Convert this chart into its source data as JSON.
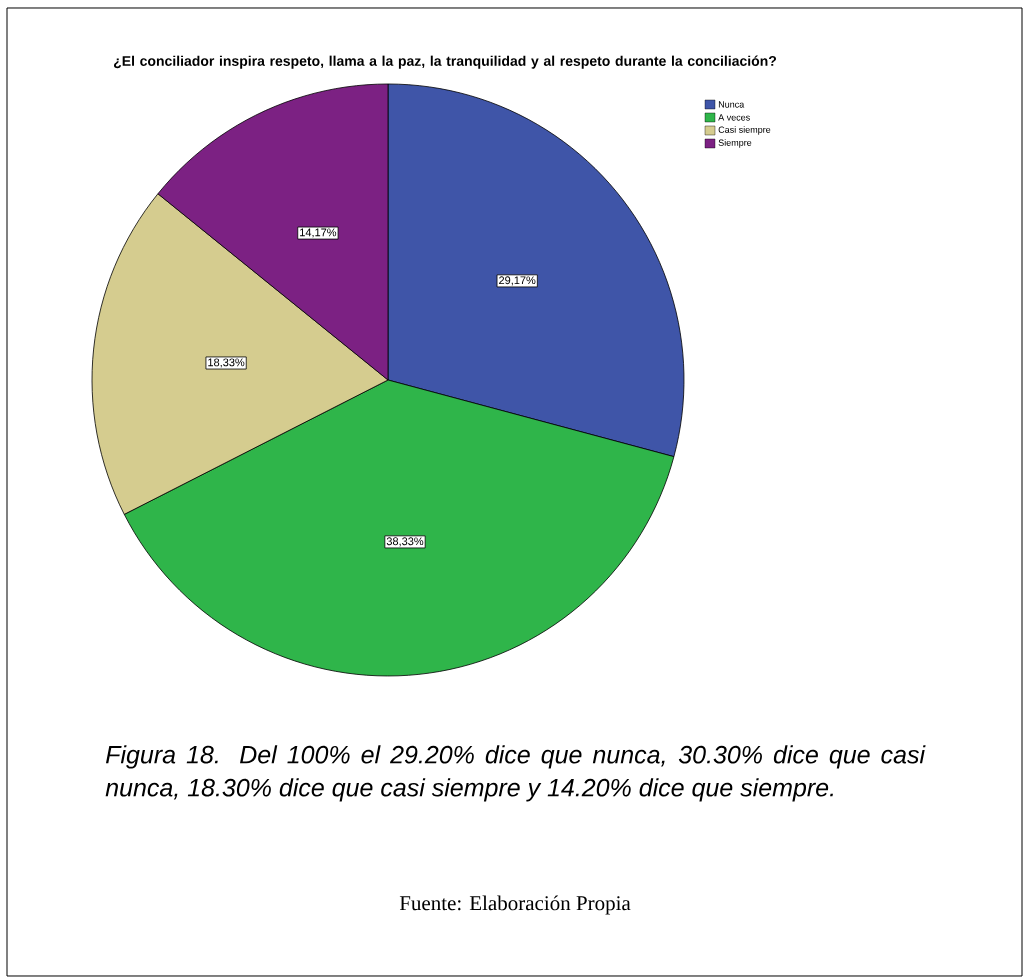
{
  "chart_data": {
    "type": "pie",
    "title": "¿El conciliador inspira respeto, llama a la paz, la tranquilidad y al respeto durante la conciliación?",
    "categories": [
      "Nunca",
      "A veces",
      "Casi siempre",
      "Siempre"
    ],
    "values": [
      29.17,
      38.33,
      18.33,
      14.17
    ],
    "value_labels": [
      "29,17%",
      "38,33%",
      "18,33%",
      "14,17%"
    ],
    "colors": [
      "#3f55a8",
      "#2fb54a",
      "#d5cc8f",
      "#7c2183"
    ],
    "legend": "top right",
    "annotations": [
      "Figura 18. Del 100% el 29.20% dice que nunca, 30.30% dice que casi nunca, 18.30% dice que casi siempre y 14.20% dice que siempre.",
      "Fuente: Elaboración Propia"
    ]
  }
}
